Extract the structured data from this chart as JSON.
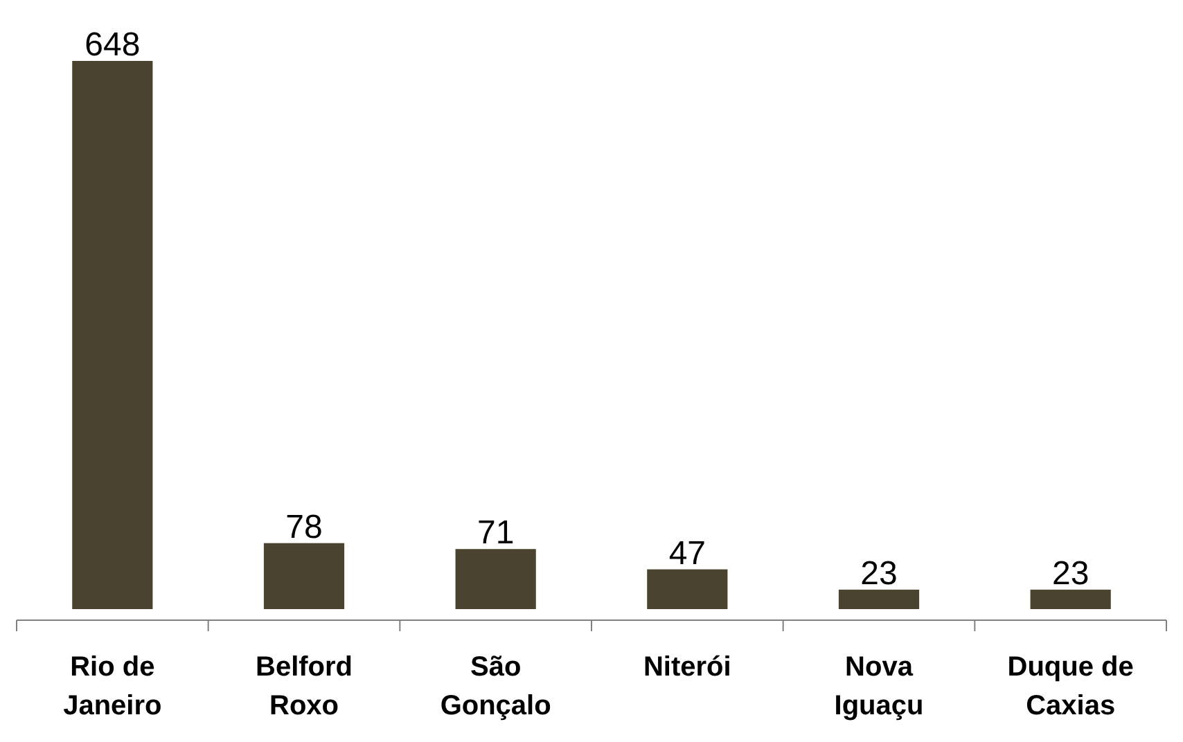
{
  "chart_data": {
    "type": "bar",
    "categories": [
      "Rio de Janeiro",
      "Belford Roxo",
      "São Gonçalo",
      "Niterói",
      "Nova Iguaçu",
      "Duque de Caxias"
    ],
    "values": [
      648,
      78,
      71,
      47,
      23,
      23
    ],
    "color": "#4a4330",
    "data_labels": true
  }
}
